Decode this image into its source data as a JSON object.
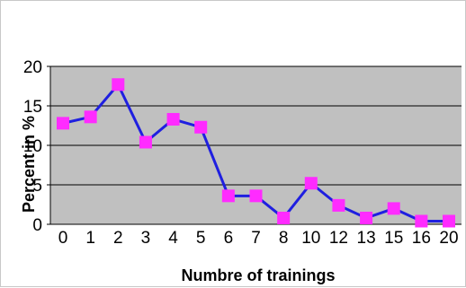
{
  "chart_data": {
    "type": "line",
    "title": "",
    "xlabel": "Numbre of trainings",
    "ylabel": "Percent in %",
    "categories": [
      "0",
      "1",
      "2",
      "3",
      "4",
      "5",
      "6",
      "7",
      "8",
      "10",
      "12",
      "13",
      "15",
      "16",
      "20"
    ],
    "series": [
      {
        "values": [
          12.8,
          13.6,
          17.7,
          10.4,
          13.3,
          12.3,
          3.6,
          3.6,
          0.8,
          5.2,
          2.4,
          0.8,
          2.0,
          0.4,
          0.4
        ],
        "line_color": "#1f1fe0",
        "marker_color": "#ff2bff",
        "marker": "square"
      }
    ],
    "ylim": [
      0,
      20
    ],
    "yticks": [
      "0",
      "5",
      "10",
      "15",
      "20"
    ],
    "grid": true,
    "legend": "none",
    "colors": {
      "plot_background": "#c0c0c0",
      "gridline": "#000000"
    }
  }
}
